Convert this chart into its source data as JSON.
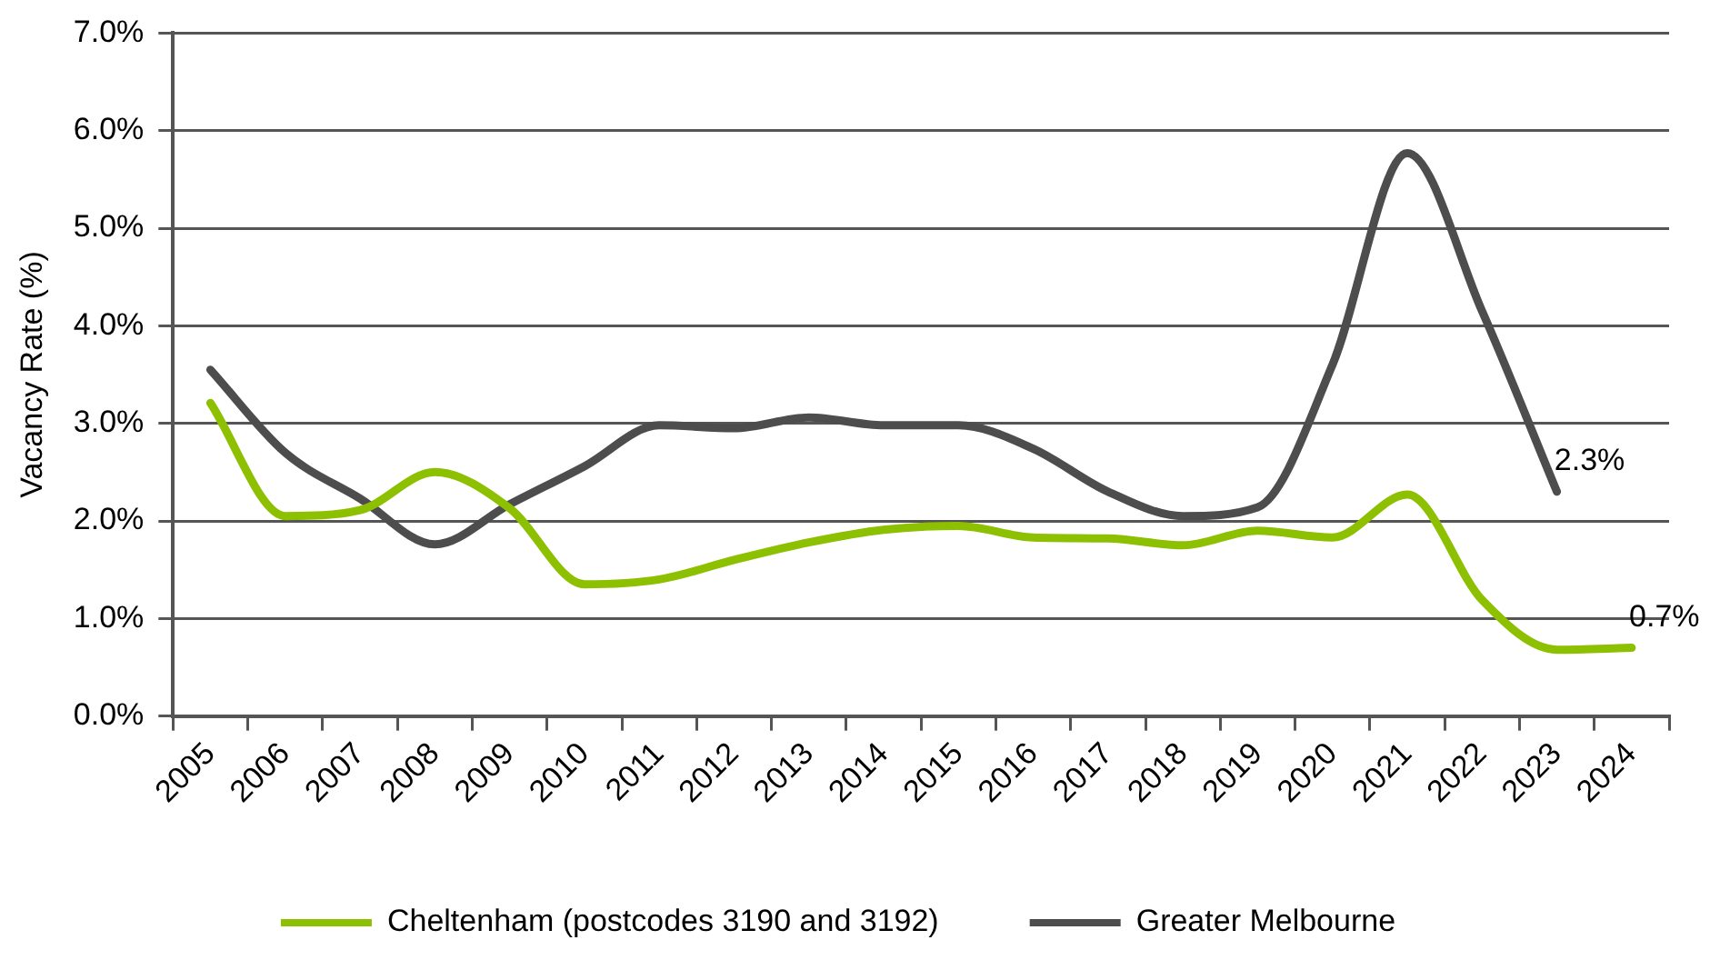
{
  "chart_data": {
    "type": "line",
    "ylabel": "Vacancy Rate (%)",
    "categories": [
      "2005",
      "2006",
      "2007",
      "2008",
      "2009",
      "2010",
      "2011",
      "2012",
      "2013",
      "2014",
      "2015",
      "2016",
      "2017",
      "2018",
      "2019",
      "2020",
      "2021",
      "2022",
      "2023",
      "2024"
    ],
    "series": [
      {
        "name": "Cheltenham (postcodes 3190 and 3192)",
        "color": "#8cc000",
        "values": [
          3.21,
          2.05,
          2.11,
          2.5,
          2.13,
          1.35,
          1.4,
          1.6,
          1.78,
          1.91,
          1.95,
          1.83,
          1.82,
          1.75,
          1.9,
          1.83,
          2.27,
          1.19,
          0.68,
          0.7
        ],
        "value_labels": [
          null,
          null,
          null,
          null,
          null,
          null,
          null,
          null,
          null,
          null,
          null,
          null,
          null,
          null,
          null,
          null,
          null,
          null,
          null,
          "0.7%"
        ]
      },
      {
        "name": "Greater Melbourne",
        "color": "#4d4d4d",
        "values": [
          3.55,
          2.7,
          2.23,
          1.76,
          2.17,
          2.56,
          2.98,
          2.95,
          3.06,
          2.98,
          2.98,
          2.74,
          2.3,
          2.05,
          2.14,
          3.6,
          5.77,
          4.15,
          2.3,
          null
        ],
        "value_labels": [
          null,
          null,
          null,
          null,
          null,
          null,
          null,
          null,
          null,
          null,
          null,
          null,
          null,
          null,
          null,
          null,
          null,
          null,
          "2.3%",
          null
        ]
      }
    ],
    "ylim": [
      0,
      7
    ],
    "yticks": [
      {
        "value": 0,
        "label": "0.0%"
      },
      {
        "value": 1,
        "label": "1.0%"
      },
      {
        "value": 2,
        "label": "2.0%"
      },
      {
        "value": 3,
        "label": "3.0%"
      },
      {
        "value": 4,
        "label": "4.0%"
      },
      {
        "value": 5,
        "label": "5.0%"
      },
      {
        "value": 6,
        "label": "6.0%"
      },
      {
        "value": 7,
        "label": "7.0%"
      }
    ],
    "grid": "y",
    "legend": "bottom",
    "marker": "none",
    "line_style": "solid"
  }
}
